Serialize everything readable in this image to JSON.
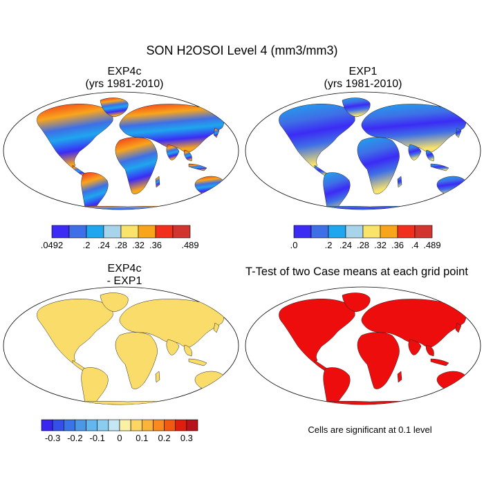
{
  "title": "SON H2OSOI Level 4 (mm3/mm3)",
  "panels": [
    {
      "title_line1": "EXP4c",
      "title_line2": "(yrs 1981-2010)"
    },
    {
      "title_line1": "EXP1",
      "title_line2": "(yrs 1981-2010)"
    },
    {
      "title_line1": "EXP4c",
      "title_line2": "- EXP1"
    },
    {
      "title_line1": "T-Test of two Case means at each grid point"
    }
  ],
  "colorbars": [
    {
      "labels": [
        ".0492",
        ".2",
        ".24",
        ".28",
        ".32",
        ".36",
        ".489"
      ],
      "colors": [
        "#3c2bf5",
        "#3e6fe6",
        "#1ea6ee",
        "#a7d4ea",
        "#fae36a",
        "#f9a51c",
        "#f22e1c",
        "#d2342f"
      ]
    },
    {
      "labels": [
        ".0",
        ".2",
        ".24",
        ".28",
        ".32",
        ".36",
        ".4",
        ".489"
      ],
      "colors": [
        "#3c2bf5",
        "#3e6fe6",
        "#1ea6ee",
        "#a7d4ea",
        "#fae36a",
        "#f9a51c",
        "#f22e1c",
        "#d2342f"
      ]
    },
    {
      "labels": [
        "-0.3",
        "-0.2",
        "-0.1",
        "0",
        "0.1",
        "0.2",
        "0.3"
      ],
      "colors": [
        "#3b26f0",
        "#3450e8",
        "#3a74e6",
        "#4a98e6",
        "#63b6ee",
        "#8acdf0",
        "#c4e6f5",
        "#fbf1a6",
        "#fbd665",
        "#f9b43c",
        "#f88a1f",
        "#f25a12",
        "#e01e0e",
        "#b7131a"
      ]
    }
  ],
  "significance_note": "Cells are significant at 0.1 level",
  "colors": {
    "significant": "#ee0d0d",
    "panel3_land": "#f9dc6a"
  }
}
